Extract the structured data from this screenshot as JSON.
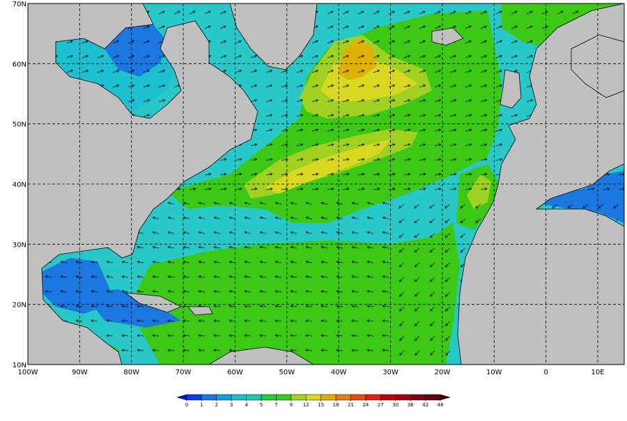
{
  "map": {
    "lon_labels": [
      "100W",
      "90W",
      "80W",
      "70W",
      "60W",
      "50W",
      "40W",
      "30W",
      "20W",
      "10W",
      "0",
      "10E"
    ],
    "lat_labels": [
      "70N",
      "60N",
      "50N",
      "40N",
      "30N",
      "20N",
      "10N"
    ],
    "colorbar": {
      "labels": [
        0,
        1,
        2,
        3,
        4,
        5,
        7,
        9,
        12,
        15,
        18,
        21,
        24,
        27,
        30,
        36,
        42,
        48
      ],
      "colors": [
        "#1010c8",
        "#0a3ee0",
        "#1a78e0",
        "#14a0d8",
        "#1cc0d0",
        "#20c8a8",
        "#28c840",
        "#3cc814",
        "#a0d020",
        "#d8d820",
        "#e0b000",
        "#e08010",
        "#e05010",
        "#e02010",
        "#c00010",
        "#a00010",
        "#800010",
        "#600010",
        "#400000"
      ]
    }
  }
}
